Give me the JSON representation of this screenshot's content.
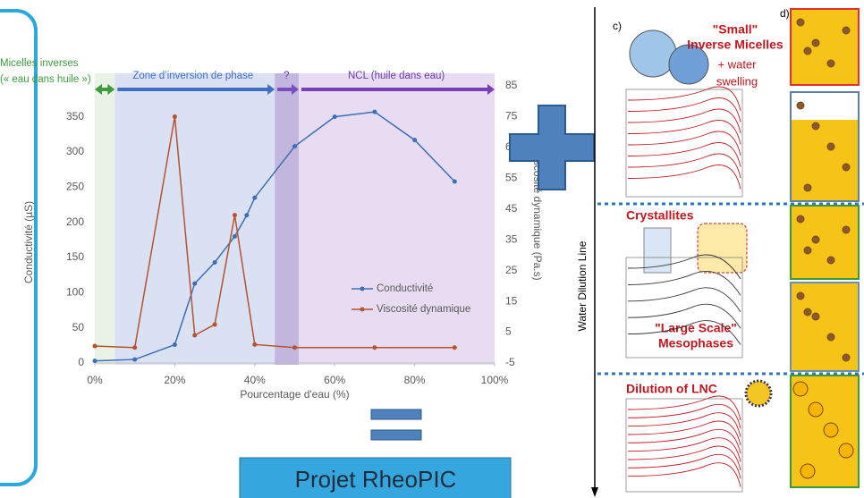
{
  "chart_data": {
    "type": "line",
    "x_label": "Pourcentage d'eau (%)",
    "y_label": "Conductivité (µS)",
    "y2_label": "Viscosité dynamique (Pa.s)",
    "xlim": [
      0,
      100
    ],
    "xticks": [
      {
        "value": 0,
        "label": "0%"
      },
      {
        "value": 20,
        "label": "20%"
      },
      {
        "value": 40,
        "label": "40%"
      },
      {
        "value": 60,
        "label": "60%"
      },
      {
        "value": 80,
        "label": "80%"
      },
      {
        "value": 100,
        "label": "100%"
      }
    ],
    "ylim": [
      0,
      394
    ],
    "yticks": [
      0,
      50,
      100,
      150,
      200,
      250,
      300,
      350
    ],
    "y2lim": [
      -5,
      85
    ],
    "y2ticks": [
      -5,
      5,
      15,
      25,
      35,
      45,
      55,
      65,
      75,
      85
    ],
    "legend": "lower right",
    "zones": [
      {
        "label": [
          "Micelles inverses",
          "(« eau dans huile »)"
        ],
        "from": 0,
        "to": 5,
        "color": "#e6f0e0",
        "arrow": "#3d9a3d"
      },
      {
        "label": [
          "Zone d’inversion de phase"
        ],
        "from": 5,
        "to": 45,
        "color": "#d3dcf0",
        "arrow": "#3f6fc4"
      },
      {
        "label": [
          "?"
        ],
        "from": 45,
        "to": 51,
        "color": "#b9a9d8",
        "arrow": "#7c4dbf"
      },
      {
        "label": [
          "NCL (huile dans eau)"
        ],
        "from": 51,
        "to": 100,
        "color": "#e3d6ee",
        "arrow": "#7a3fb8"
      }
    ],
    "series": [
      {
        "name": "Conductivité",
        "color": "#3b6fb6",
        "axis": "y",
        "x": [
          0,
          10,
          20,
          25,
          30,
          35,
          38,
          40,
          50,
          60,
          70,
          80,
          90
        ],
        "values": [
          3,
          5,
          26,
          113,
          143,
          180,
          210,
          235,
          308,
          350,
          357,
          317,
          258
        ]
      },
      {
        "name": "Viscosité dynamique",
        "color": "#b5532e",
        "axis": "y2",
        "x": [
          0,
          10,
          20,
          25,
          30,
          35,
          40,
          50,
          70,
          90
        ],
        "values": [
          0.5,
          0,
          75,
          4,
          7.5,
          43,
          1,
          0,
          0,
          0
        ]
      }
    ]
  },
  "project": "Projet RheoPIC",
  "figure": {
    "panel_c": "c)",
    "panel_d": "d)",
    "axis_label": "Water Dilution Line",
    "small_micelles": [
      "\"Small\"",
      "Inverse Micelles"
    ],
    "swelling": [
      "+ water",
      "swelling"
    ],
    "crystallites": "Crystallites",
    "mesophases": [
      "\"Large Scale\"",
      "Mesophases"
    ],
    "dilution": "Dilution of LNC"
  }
}
